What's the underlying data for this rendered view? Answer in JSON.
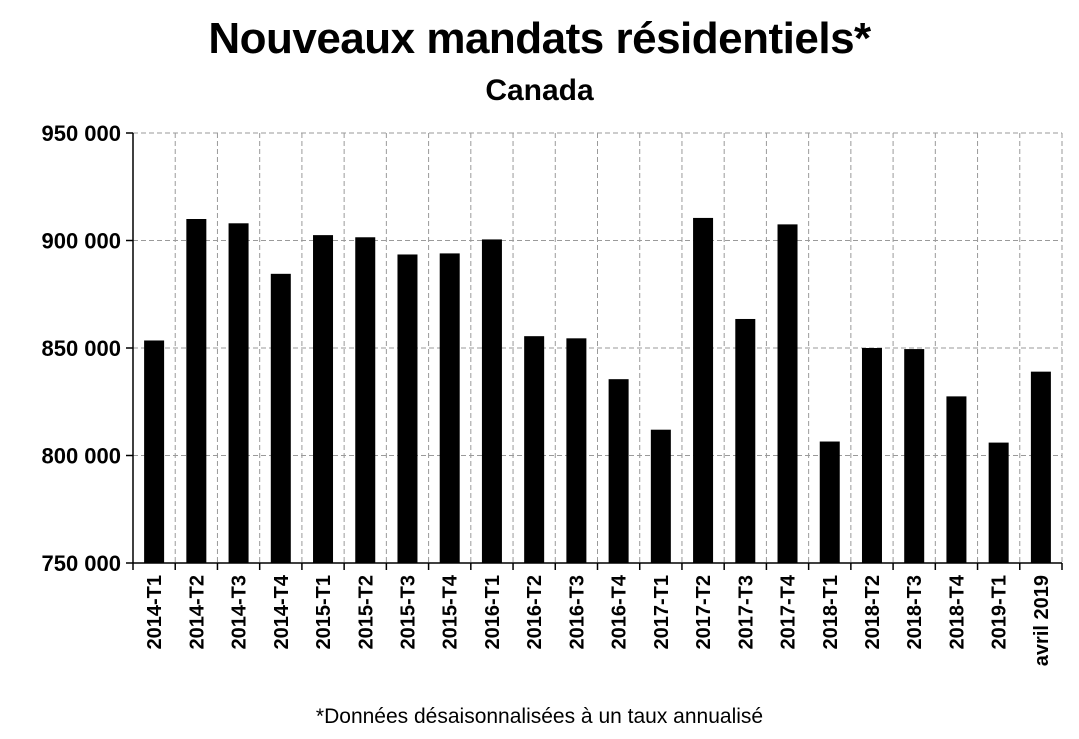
{
  "chart_data": {
    "type": "bar",
    "title": "Nouveaux mandats résidentiels*",
    "subtitle": "Canada",
    "footnote": "*Données désaisonnalisées à un taux annualisé",
    "categories": [
      "2014-T1",
      "2014-T2",
      "2014-T3",
      "2014-T4",
      "2015-T1",
      "2015-T2",
      "2015-T3",
      "2015-T4",
      "2016-T1",
      "2016-T2",
      "2016-T3",
      "2016-T4",
      "2017-T1",
      "2017-T2",
      "2017-T3",
      "2017-T4",
      "2018-T1",
      "2018-T2",
      "2018-T3",
      "2018-T4",
      "2019-T1",
      "avril 2019"
    ],
    "values": [
      853500,
      910000,
      908000,
      884500,
      902500,
      901500,
      893500,
      894000,
      900500,
      855500,
      854500,
      835500,
      812000,
      910500,
      863500,
      907500,
      806500,
      850000,
      849500,
      827500,
      806000,
      839000
    ],
    "ylim": [
      750000,
      950000
    ],
    "yticks": [
      750000,
      800000,
      850000,
      900000,
      950000
    ],
    "ytick_labels": [
      "750 000",
      "800 000",
      "850 000",
      "900 000",
      "950 000"
    ],
    "bar_color": "#000000",
    "grid": true,
    "legend": "none"
  }
}
